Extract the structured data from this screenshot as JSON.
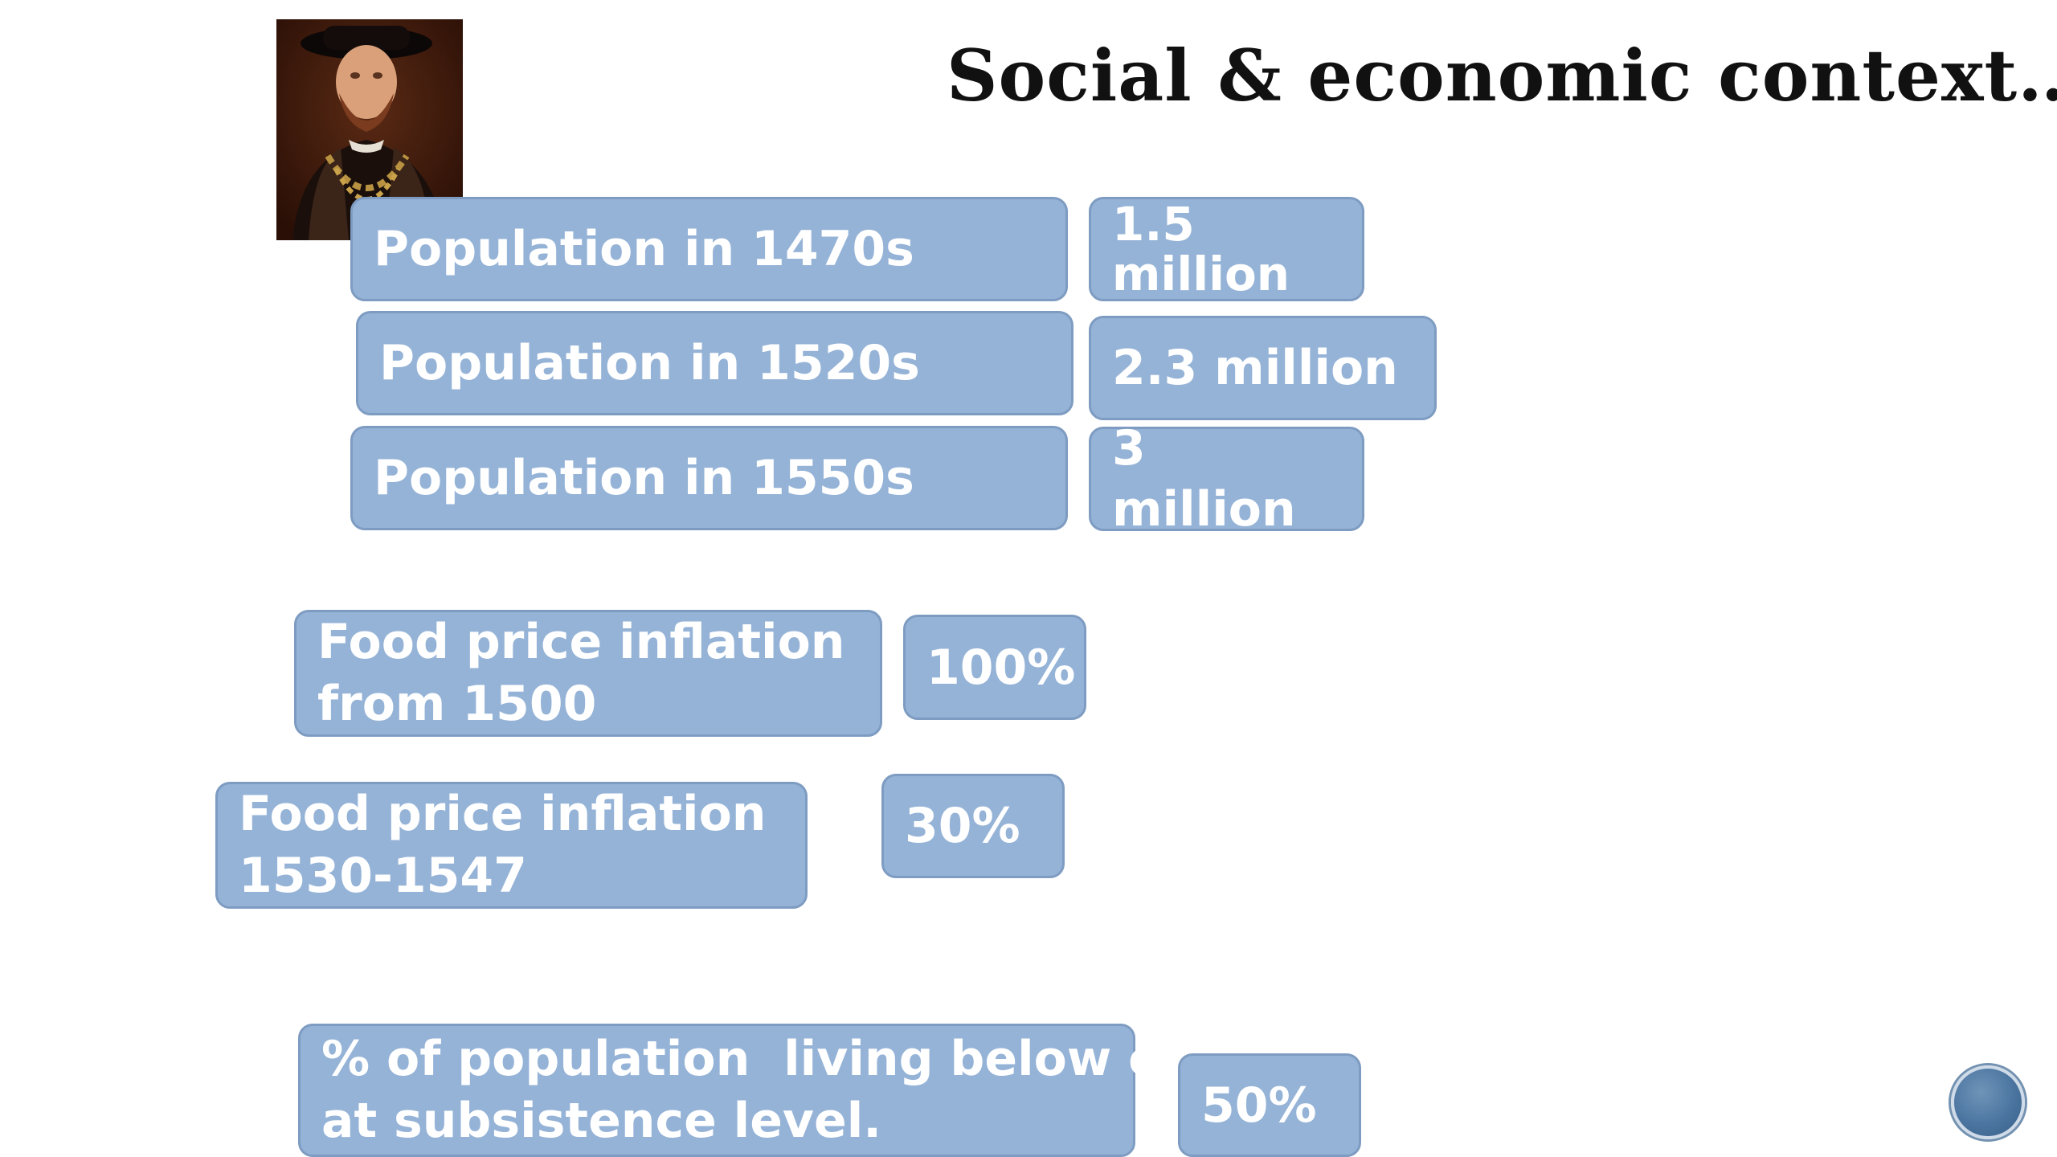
{
  "slide": {
    "title": "Social & economic context…",
    "portrait_icon": "tudor-portrait-image"
  },
  "population": [
    {
      "label": "Population in 1470s",
      "value_line1": "1.5",
      "value_line2": "million"
    },
    {
      "label": "Population in 1520s",
      "value": "2.3 million"
    },
    {
      "label": "Population in 1550s",
      "value": "3 million"
    }
  ],
  "inflation": [
    {
      "label_line1": "Food price inflation",
      "label_line2": "from 1500",
      "value": "100%"
    },
    {
      "label_line1": "Food price inflation",
      "label_line2": "1530-1547",
      "value": "30%"
    }
  ],
  "subsistence": {
    "label_line1": "% of population  living below or",
    "label_line2": "at subsistence level.",
    "value": "50%"
  },
  "colors": {
    "box_fill": "#95b3d7",
    "box_border": "#7e9cc2",
    "box_text": "#ffffff",
    "title_text": "#111111"
  },
  "navigation": {
    "icon": "slide-nav-button-icon"
  }
}
